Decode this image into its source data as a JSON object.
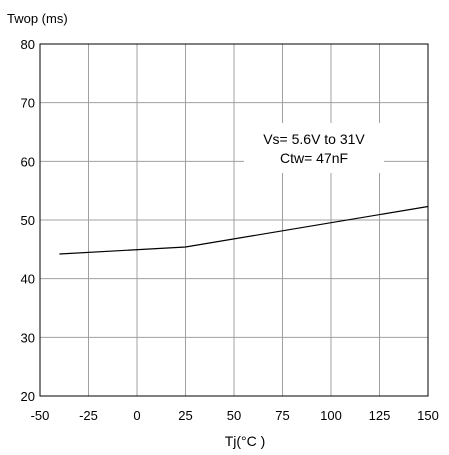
{
  "chart_data": {
    "type": "line",
    "ylabel": "Twop (ms)",
    "xlabel": "Tj(°C )",
    "xlim": [
      -50,
      150
    ],
    "ylim": [
      20,
      80
    ],
    "x_ticks": [
      -50,
      -25,
      0,
      25,
      50,
      75,
      100,
      125,
      150
    ],
    "x_tick_labels": [
      "-50",
      "-25",
      "0",
      "25",
      "50",
      "75",
      "100",
      "125",
      "150"
    ],
    "y_ticks": [
      20,
      30,
      40,
      50,
      60,
      70,
      80
    ],
    "y_tick_labels": [
      "20",
      "30",
      "40",
      "50",
      "60",
      "70",
      "80"
    ],
    "grid": true,
    "annotation": [
      "Vs= 5.6V to 31V",
      "Ctw= 47nF"
    ],
    "series": [
      {
        "x": [
          -40,
          25,
          150
        ],
        "y": [
          44.2,
          45.4,
          52.3
        ]
      }
    ],
    "colors": {
      "line": "#000000",
      "grid": "#a0a0a0",
      "axis": "#000000"
    }
  }
}
